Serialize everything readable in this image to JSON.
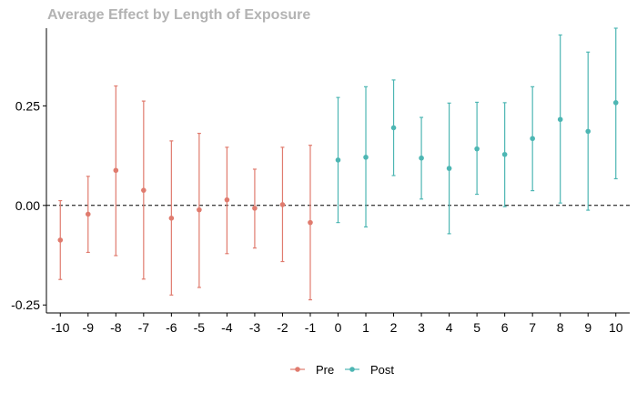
{
  "chart_data": {
    "type": "scatter",
    "title": "Average Effect by Length of Exposure",
    "xlabel": "",
    "ylabel": "",
    "x_ticks": [
      "-10",
      "-9",
      "-8",
      "-7",
      "-6",
      "-5",
      "-4",
      "-3",
      "-2",
      "-1",
      "0",
      "1",
      "2",
      "3",
      "4",
      "5",
      "6",
      "7",
      "8",
      "9",
      "10"
    ],
    "y_ticks": [
      {
        "value": -0.25,
        "label": "-0.25"
      },
      {
        "value": 0.0,
        "label": "0.00"
      },
      {
        "value": 0.25,
        "label": "0.25"
      }
    ],
    "ylim": [
      -0.27,
      0.445
    ],
    "xlim": [
      -10.5,
      10.5
    ],
    "reference_line": {
      "y": 0,
      "style": "dashed"
    },
    "grid": false,
    "legend_position": "bottom",
    "colors": {
      "Pre": "#E07B6E",
      "Post": "#4DB6B3"
    },
    "series": [
      {
        "name": "Pre",
        "x": [
          -10,
          -9,
          -8,
          -7,
          -6,
          -5,
          -4,
          -3,
          -2,
          -1
        ],
        "y": [
          -0.087,
          -0.022,
          0.088,
          0.038,
          -0.032,
          -0.011,
          0.014,
          -0.007,
          0.002,
          -0.043
        ],
        "lower": [
          -0.186,
          -0.118,
          -0.126,
          -0.185,
          -0.225,
          -0.206,
          -0.121,
          -0.107,
          -0.141,
          -0.237
        ],
        "upper": [
          0.012,
          0.073,
          0.3,
          0.262,
          0.162,
          0.181,
          0.146,
          0.091,
          0.146,
          0.151
        ]
      },
      {
        "name": "Post",
        "x": [
          0,
          1,
          2,
          3,
          4,
          5,
          6,
          7,
          8,
          9,
          10
        ],
        "y": [
          0.114,
          0.121,
          0.195,
          0.119,
          0.093,
          0.142,
          0.128,
          0.168,
          0.216,
          0.186,
          0.258
        ],
        "lower": [
          -0.043,
          -0.054,
          0.075,
          0.016,
          -0.071,
          0.028,
          -0.003,
          0.037,
          0.006,
          -0.012,
          0.067
        ],
        "upper": [
          0.271,
          0.298,
          0.315,
          0.221,
          0.257,
          0.259,
          0.258,
          0.298,
          0.428,
          0.385,
          0.445
        ]
      }
    ]
  }
}
